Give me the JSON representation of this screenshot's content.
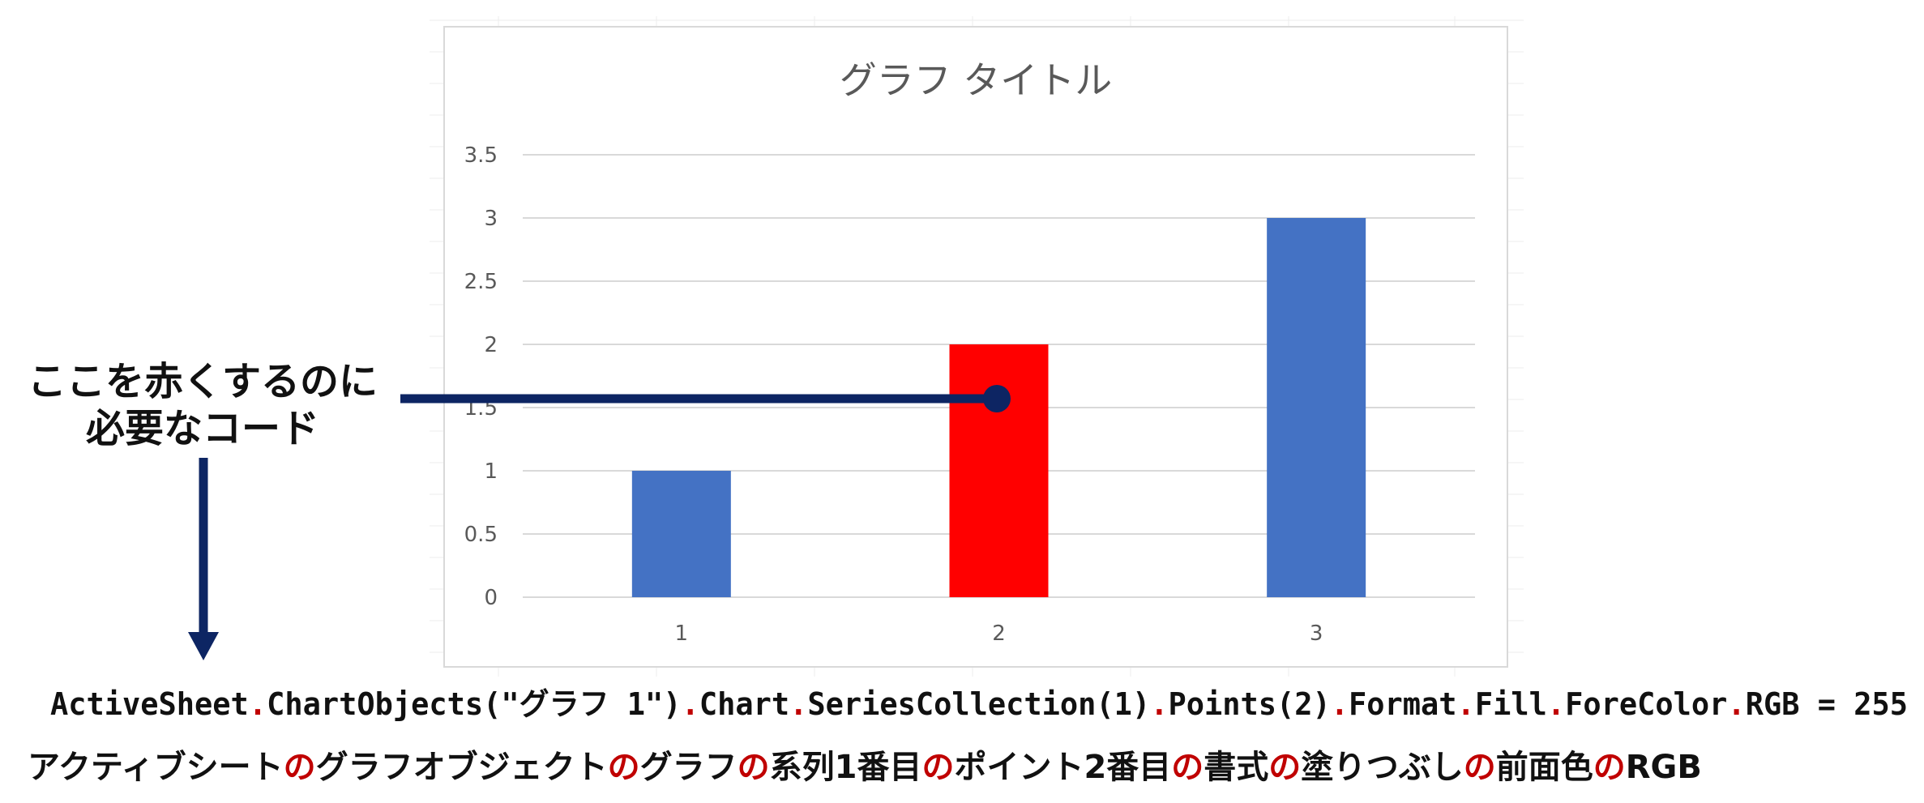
{
  "chart_data": {
    "type": "bar",
    "title": "グラフ タイトル",
    "xlabel": "",
    "ylabel": "",
    "categories": [
      "1",
      "2",
      "3"
    ],
    "series": [
      {
        "values": [
          1,
          2,
          3
        ]
      }
    ],
    "ylim": [
      0,
      3.5
    ],
    "yticks": [
      "0",
      "0.5",
      "1",
      "1.5",
      "2",
      "2.5",
      "3",
      "3.5"
    ],
    "grid": true,
    "legend": "none",
    "bar_colors": [
      "#4472c4",
      "#ff0000",
      "#4472c4"
    ],
    "highlighted_point": 2
  },
  "colors": {
    "bar_default": "#4472c4",
    "bar_highlight": "#ff0000",
    "callout": "#0d2563",
    "dot_accent": "#c00000"
  },
  "callout": {
    "line1": "ここを赤くするのに",
    "line2": "必要なコード"
  },
  "code_line": {
    "segments": [
      "ActiveSheet",
      "ChartObjects(\"グラフ 1\")",
      "Chart",
      "SeriesCollection(1)",
      "Points(2)",
      "Format",
      "Fill",
      "ForeColor",
      "RGB = 255"
    ],
    "separator": "."
  },
  "japanese_line": {
    "segments": [
      "アクティブシート",
      "グラフオブジェクト",
      "グラフ",
      "系列1番目",
      "ポイント2番目",
      "書式",
      "塗りつぶし",
      "前面色",
      "RGB"
    ],
    "separator": "の"
  }
}
